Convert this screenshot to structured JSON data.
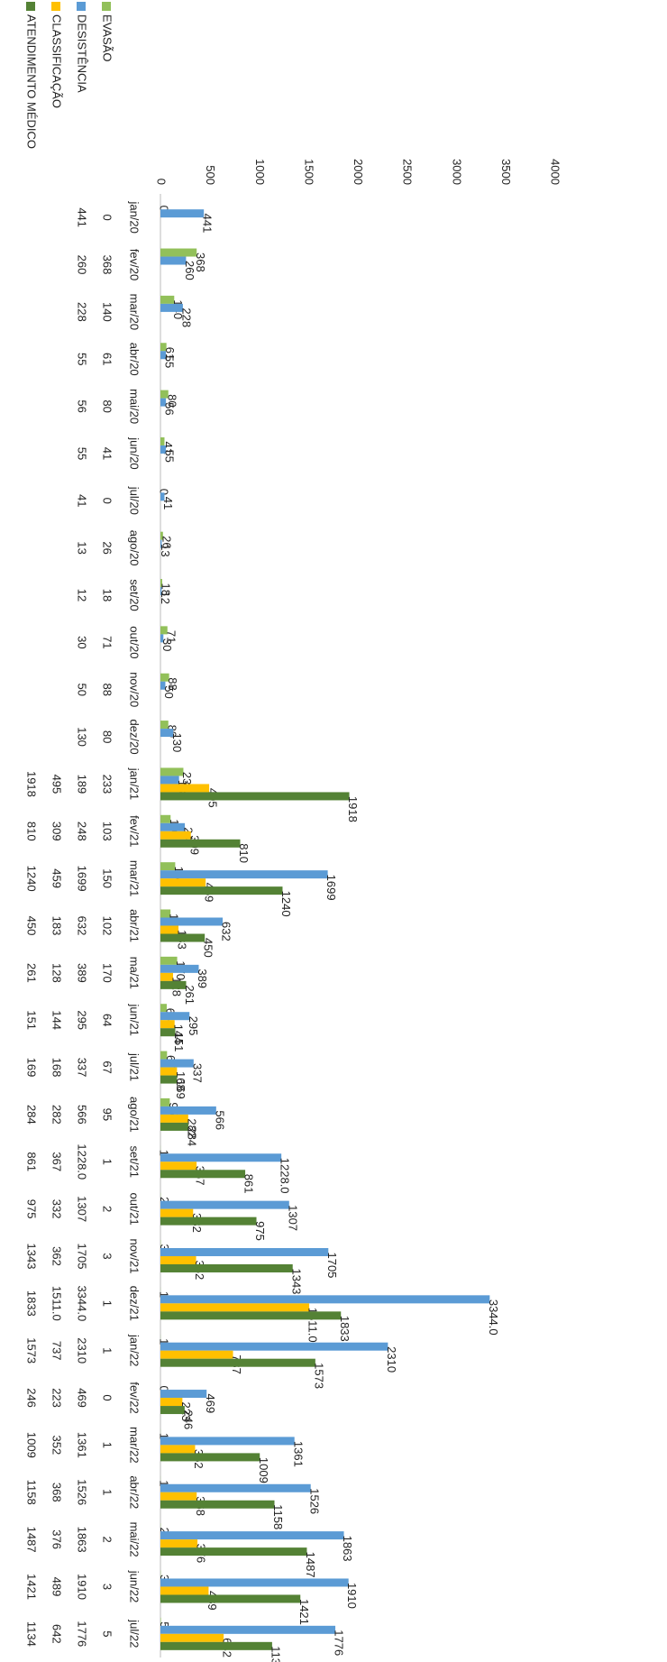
{
  "chart_data": {
    "type": "bar",
    "orientation": "horizontal",
    "categories": [
      "jan/20",
      "fev/20",
      "mar/20",
      "abr/20",
      "mai/20",
      "jun/20",
      "jul/20",
      "ago/20",
      "set/20",
      "out/20",
      "nov/20",
      "dez/20",
      "jan/21",
      "fev/21",
      "mar/21",
      "abr/21",
      "ma/21",
      "jun/21",
      "jul/21",
      "ago/21",
      "set/21",
      "out/21",
      "nov/21",
      "dez/21",
      "jan/22",
      "fev/22",
      "mar/22",
      "abr/22",
      "mai/22",
      "jun/22",
      "jul/22"
    ],
    "series": [
      {
        "name": "EVASÃO",
        "color": "#92c05a",
        "values": [
          0,
          368,
          140,
          61,
          80,
          41,
          0,
          26,
          18,
          71,
          88,
          80,
          233,
          103,
          150,
          102,
          170,
          64,
          67,
          95,
          1,
          2,
          3,
          1,
          1,
          0,
          1,
          1,
          2,
          3,
          5
        ]
      },
      {
        "name": "DESISTÊNCIA",
        "color": "#5b9bd5",
        "values": [
          441,
          260,
          228,
          55,
          56,
          55,
          41,
          13,
          12,
          30,
          50,
          130,
          189,
          248,
          1699,
          632,
          389,
          295,
          337,
          566,
          1228,
          1307,
          1705,
          3344,
          2310,
          469,
          1361,
          1526,
          1863,
          1910,
          1776
        ],
        "value_labels": [
          "441",
          "260",
          "228",
          "55",
          "56",
          "55",
          "41",
          "13",
          "12",
          "30",
          "50",
          "130",
          "189",
          "248",
          "1699",
          "632",
          "389",
          "295",
          "337",
          "566",
          "1228.0",
          "1307",
          "1705",
          "3344.0",
          "2310",
          "469",
          "1361",
          "1526",
          "1863",
          "1910",
          "1776"
        ]
      },
      {
        "name": "CLASSIFICAÇÃO",
        "color": "#ffc000",
        "values": [
          null,
          null,
          null,
          null,
          null,
          null,
          null,
          null,
          null,
          null,
          null,
          null,
          495,
          309,
          459,
          183,
          128,
          144,
          168,
          282,
          367,
          332,
          362,
          1511,
          737,
          223,
          352,
          368,
          376,
          489,
          642
        ],
        "value_labels": [
          null,
          null,
          null,
          null,
          null,
          null,
          null,
          null,
          null,
          null,
          null,
          null,
          "495",
          "309",
          "459",
          "183",
          "128",
          "144",
          "168",
          "282",
          "367",
          "332",
          "362",
          "1511.0",
          "737",
          "223",
          "352",
          "368",
          "376",
          "489",
          "642"
        ]
      },
      {
        "name": "ATENDIMENTO MÉDICO",
        "color": "#548235",
        "values": [
          null,
          null,
          null,
          null,
          null,
          null,
          null,
          null,
          null,
          null,
          null,
          null,
          1918,
          810,
          1240,
          450,
          261,
          151,
          169,
          284,
          861,
          975,
          1343,
          1833,
          1573,
          246,
          1009,
          1158,
          1487,
          1421,
          1134
        ]
      }
    ],
    "xlim": [
      0,
      4000
    ],
    "xticks": [
      0,
      500,
      1000,
      1500,
      2000,
      2500,
      3000,
      3500,
      4000
    ],
    "grid": false
  }
}
